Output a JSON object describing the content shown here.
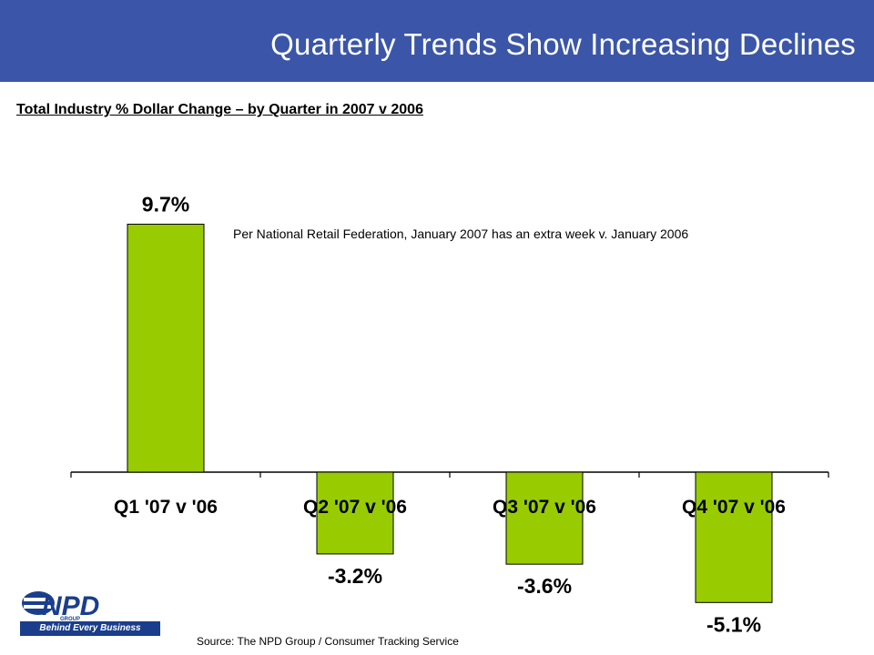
{
  "header": {
    "title": "Quarterly Trends Show Increasing Declines"
  },
  "subtitle": "Total Industry % Dollar Change – by Quarter in 2007 v 2006",
  "note": "Per National Retail Federation, January 2007 has an extra week v. January 2006",
  "source": "Source:  The NPD Group / Consumer Tracking Service",
  "logo": {
    "text": "NPD",
    "group": "GROUP",
    "tagline": "Behind Every Business Decision"
  },
  "colors": {
    "header": "#3b56a8",
    "bar": "#99cc00",
    "bar_stroke": "#000000"
  },
  "chart_data": {
    "type": "bar",
    "title": "Total Industry % Dollar Change – by Quarter in 2007 v 2006",
    "categories": [
      "Q1 '07 v '06",
      "Q2 '07 v '06",
      "Q3 '07 v '06",
      "Q4 '07 v '06"
    ],
    "values": [
      9.7,
      -3.2,
      -3.6,
      -5.1
    ],
    "data_labels": [
      "9.7%",
      "-3.2%",
      "-3.6%",
      "-5.1%"
    ],
    "xlabel": "",
    "ylabel": "",
    "ylim": [
      -5.1,
      9.7
    ],
    "grid": false,
    "legend": "none"
  }
}
